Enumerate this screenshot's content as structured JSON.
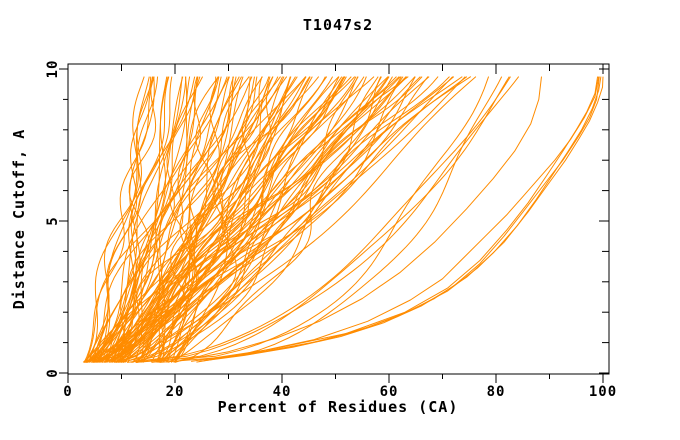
{
  "chart_data": {
    "type": "line",
    "title": "T1047s2",
    "xlabel": "Percent of Residues (CA)",
    "ylabel": "Distance Cutoff, A",
    "xlim": [
      0,
      101.2
    ],
    "ylim": [
      0,
      10.2
    ],
    "x_major_ticks": [
      0,
      20,
      40,
      60,
      80,
      100
    ],
    "x_minor_ticks": [
      10,
      30,
      50,
      70,
      90
    ],
    "y_major_ticks": [
      0,
      5,
      10
    ],
    "y_minor_ticks": [
      1,
      2,
      3,
      4,
      6,
      7,
      8,
      9
    ],
    "grid": false,
    "legend": "none",
    "background": "#ffffff",
    "axis_color": "#000000",
    "curve_color": "#ff8c00",
    "curve_y_span": [
      0.35,
      9.75
    ],
    "series_note": "Approximately 125 per-model cumulative accuracy curves: percent of CA residues (x) within each distance cutoff (y). Dense bundle spans ~3-20% at cutoff 0.4A fanning to ~13-88% at cutoff 9.75A; a few outlier curves sweep right reaching ~99-100% near cutoff 9-9.75A.",
    "bundle": {
      "count": 114,
      "seed": 1337,
      "x_bottom_range": [
        2.8,
        20
      ],
      "x_top_range": [
        13,
        77
      ],
      "shape_exp_range": [
        0.55,
        1.15
      ],
      "wiggle_amp_range": [
        1.0,
        3.5
      ],
      "wiggle_freq_range": [
        0.8,
        2.5
      ],
      "y_step": 0.2
    },
    "extra_top_curves": {
      "count": 5,
      "seed": 42,
      "x_bottom_range": [
        11,
        20
      ],
      "x_top_range": [
        78,
        88
      ],
      "shape_exp_range": [
        0.35,
        0.55
      ],
      "wiggle_amp_range": [
        0.8,
        2.0
      ],
      "wiggle_freq_range": [
        0.8,
        1.6
      ],
      "y_step": 0.2
    },
    "outlier_curves": [
      [
        [
          24.5,
          0.38
        ],
        [
          33,
          0.58
        ],
        [
          42,
          0.85
        ],
        [
          51,
          1.2
        ],
        [
          59,
          1.65
        ],
        [
          66,
          2.2
        ],
        [
          72,
          2.85
        ],
        [
          77,
          3.6
        ],
        [
          81.5,
          4.5
        ],
        [
          85.5,
          5.4
        ],
        [
          89,
          6.2
        ],
        [
          92.5,
          7.0
        ],
        [
          95.5,
          7.8
        ],
        [
          97.5,
          8.4
        ],
        [
          98.8,
          9.0
        ],
        [
          99.3,
          9.75
        ]
      ],
      [
        [
          25.5,
          0.42
        ],
        [
          35,
          0.65
        ],
        [
          44.5,
          0.95
        ],
        [
          53.5,
          1.35
        ],
        [
          61.5,
          1.85
        ],
        [
          68.5,
          2.45
        ],
        [
          74.5,
          3.15
        ],
        [
          79.5,
          3.95
        ],
        [
          84,
          4.85
        ],
        [
          87.5,
          5.7
        ],
        [
          90.5,
          6.5
        ],
        [
          93.5,
          7.3
        ],
        [
          96,
          8.0
        ],
        [
          98,
          8.7
        ],
        [
          99.2,
          9.3
        ],
        [
          99.6,
          9.75
        ]
      ],
      [
        [
          26.5,
          0.45
        ],
        [
          37,
          0.72
        ],
        [
          47,
          1.05
        ],
        [
          56,
          1.5
        ],
        [
          64,
          2.05
        ],
        [
          71,
          2.7
        ],
        [
          76.5,
          3.45
        ],
        [
          81.5,
          4.3
        ],
        [
          86,
          5.3
        ],
        [
          89.5,
          6.15
        ],
        [
          93,
          7.0
        ],
        [
          95.5,
          7.7
        ],
        [
          97.5,
          8.3
        ],
        [
          99,
          8.9
        ],
        [
          99.9,
          9.4
        ],
        [
          100,
          9.75
        ]
      ],
      [
        [
          24,
          0.36
        ],
        [
          35,
          0.68
        ],
        [
          46,
          1.1
        ],
        [
          56,
          1.7
        ],
        [
          64,
          2.4
        ],
        [
          70,
          3.1
        ],
        [
          74,
          3.8
        ],
        [
          78,
          4.5
        ],
        [
          82,
          5.2
        ],
        [
          85,
          5.8
        ],
        [
          88,
          6.4
        ],
        [
          91,
          7.0
        ],
        [
          94,
          7.7
        ],
        [
          96.5,
          8.4
        ],
        [
          98.5,
          9.1
        ],
        [
          99.2,
          9.75
        ]
      ],
      [
        [
          21,
          0.4
        ],
        [
          30,
          0.7
        ],
        [
          39,
          1.15
        ],
        [
          47,
          1.7
        ],
        [
          55,
          2.45
        ],
        [
          62,
          3.3
        ],
        [
          68.5,
          4.3
        ],
        [
          74.5,
          5.4
        ],
        [
          79.5,
          6.4
        ],
        [
          83.5,
          7.3
        ],
        [
          86.5,
          8.2
        ],
        [
          88,
          9.0
        ],
        [
          88.5,
          9.75
        ]
      ],
      [
        [
          23,
          0.38
        ],
        [
          38,
          0.78
        ],
        [
          52,
          1.3
        ],
        [
          63,
          2.0
        ],
        [
          71,
          2.8
        ],
        [
          77,
          3.7
        ],
        [
          82,
          4.7
        ],
        [
          86,
          5.6
        ],
        [
          89.5,
          6.5
        ],
        [
          92.5,
          7.3
        ],
        [
          95,
          8.0
        ],
        [
          97,
          8.6
        ],
        [
          98.5,
          9.2
        ],
        [
          99,
          9.75
        ]
      ]
    ]
  }
}
